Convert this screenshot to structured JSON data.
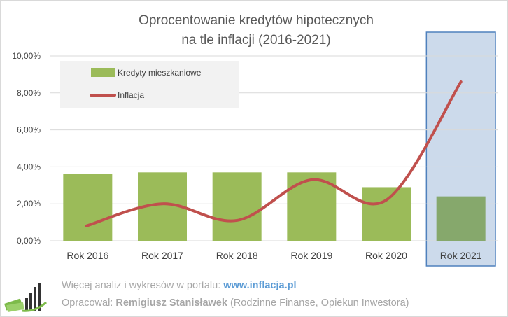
{
  "chart_data": {
    "type": "bar",
    "title_line1": "Oprocentowanie kredytów hipotecznych",
    "title_line2": "na tle inflacji (2016-2021)",
    "categories": [
      "Rok 2016",
      "Rok 2017",
      "Rok 2018",
      "Rok 2019",
      "Rok 2020",
      "Rok 2021"
    ],
    "yticks": [
      "0,00%",
      "2,00%",
      "4,00%",
      "6,00%",
      "8,00%",
      "10,00%"
    ],
    "ylim": [
      0,
      10
    ],
    "series": [
      {
        "name": "Kredyty mieszkaniowe",
        "type": "bar",
        "values": [
          3.6,
          3.7,
          3.7,
          3.7,
          2.9,
          2.4
        ]
      },
      {
        "name": "Inflacja",
        "type": "line",
        "values": [
          0.8,
          2.0,
          1.1,
          3.3,
          2.2,
          8.6
        ]
      }
    ],
    "highlight_category": "Rok 2021",
    "legend_position": "top-left",
    "colors": {
      "bar": "#9bbb59",
      "bar_highlight": "#86a86c",
      "line": "#c0504d",
      "highlight_fill": "#ccdaeb",
      "highlight_border": "#4f81bd",
      "grid": "#d9d9d9",
      "legend_bg": "#f2f2f2"
    }
  },
  "footer": {
    "line1_prefix": "Więcej analiz i wykresów w portalu: ",
    "line1_link": "www.inflacja.pl",
    "line2_prefix": "Opracował: ",
    "line2_author": "Remigiusz Stanisławek",
    "line2_suffix": " (Rodzinne Finanse, Opiekun Inwestora)"
  }
}
